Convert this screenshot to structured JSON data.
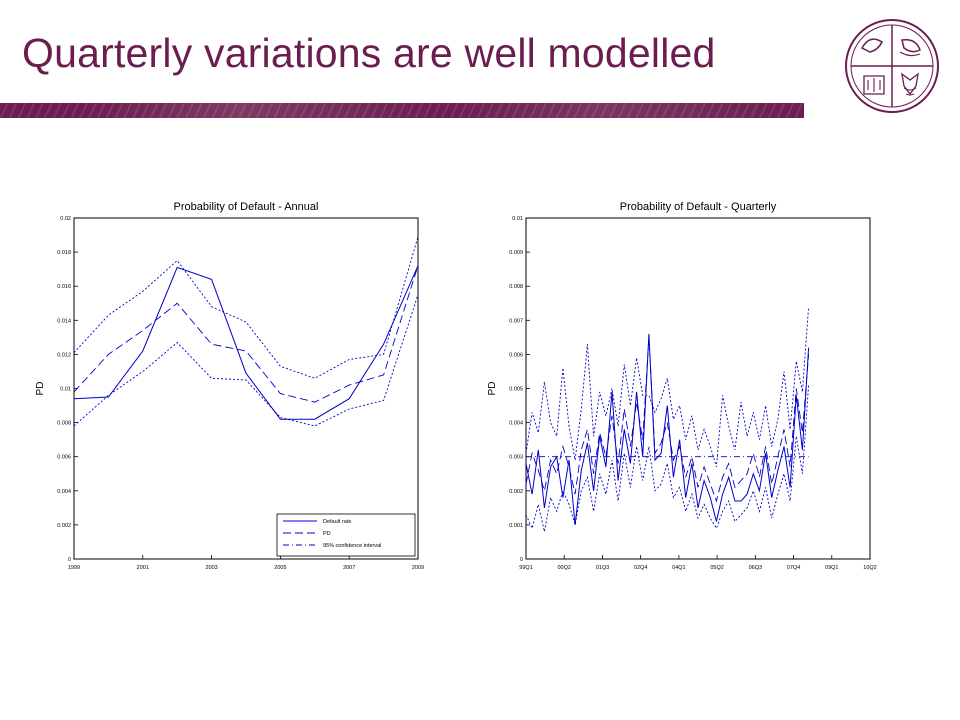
{
  "slide": {
    "title": "Quarterly variations are well modelled"
  },
  "colors": {
    "title": "#6b1d4f",
    "band": "#6b1d4f",
    "series": "#0000cc"
  },
  "icons": {
    "seal": "university-seal-icon"
  },
  "chart_data": [
    {
      "type": "line",
      "title": "Probability of Default - Annual",
      "xlabel": "",
      "ylabel": "PD",
      "xlim": [
        1999,
        2009
      ],
      "ylim": [
        0,
        0.02
      ],
      "xticks": [
        "1999",
        "2001",
        "2003",
        "2005",
        "2007",
        "2009"
      ],
      "yticks": [
        "0",
        "0.002",
        "0.004",
        "0.006",
        "0.008",
        "0.01",
        "0.012",
        "0.014",
        "0.016",
        "0.018",
        "0.02"
      ],
      "legend_position": "bottom-right",
      "x": [
        1999,
        2000,
        2001,
        2002,
        2003,
        2004,
        2005,
        2006,
        2007,
        2008,
        2009
      ],
      "series": [
        {
          "name": "Default rate",
          "style": "solid",
          "values": [
            0.0094,
            0.0095,
            0.0122,
            0.0171,
            0.0164,
            0.0109,
            0.0082,
            0.0082,
            0.0094,
            0.0126,
            0.0172
          ]
        },
        {
          "name": "PD",
          "style": "dash",
          "values": [
            0.0098,
            0.012,
            0.0134,
            0.015,
            0.0126,
            0.0122,
            0.0097,
            0.0092,
            0.0102,
            0.0108,
            0.0172
          ]
        },
        {
          "name": "95% confidence interval",
          "style": "dot",
          "values": [
            0.0121,
            0.0143,
            0.0157,
            0.0175,
            0.0148,
            0.0139,
            0.0113,
            0.0106,
            0.0117,
            0.012,
            0.0189
          ]
        },
        {
          "name": "",
          "style": "dot",
          "values": [
            0.0078,
            0.0096,
            0.011,
            0.0127,
            0.0106,
            0.0105,
            0.0083,
            0.0078,
            0.0088,
            0.0093,
            0.0155
          ]
        }
      ]
    },
    {
      "type": "line",
      "title": "Probability of Default - Quarterly",
      "xlabel": "",
      "ylabel": "PD",
      "xlim": [
        0,
        56
      ],
      "ylim": [
        0,
        0.01
      ],
      "xticks": [
        "99Q1",
        "00Q2",
        "01Q3",
        "02Q4",
        "04Q1",
        "05Q2",
        "06Q3",
        "07Q4",
        "09Q1",
        "10Q2"
      ],
      "yticks": [
        "0",
        "0.001",
        "0.002",
        "0.003",
        "0.004",
        "0.005",
        "0.006",
        "0.007",
        "0.008",
        "0.009",
        "0.01"
      ],
      "reference_line": 0.003,
      "x": [
        0,
        1,
        2,
        3,
        4,
        5,
        6,
        7,
        8,
        9,
        10,
        11,
        12,
        13,
        14,
        15,
        16,
        17,
        18,
        19,
        20,
        21,
        22,
        23,
        24,
        25,
        26,
        27,
        28,
        29,
        30,
        31,
        32,
        33,
        34,
        35,
        36,
        37,
        38,
        39,
        40,
        41,
        42,
        43,
        44,
        45,
        46
      ],
      "series": [
        {
          "name": "Default rate",
          "style": "solid",
          "values": [
            0.0028,
            0.0019,
            0.0032,
            0.0015,
            0.0027,
            0.003,
            0.0018,
            0.0029,
            0.001,
            0.0026,
            0.0034,
            0.002,
            0.0036,
            0.0027,
            0.0049,
            0.0023,
            0.0038,
            0.0028,
            0.0049,
            0.003,
            0.0066,
            0.0029,
            0.0031,
            0.0045,
            0.0024,
            0.0035,
            0.0018,
            0.0028,
            0.0015,
            0.0023,
            0.0018,
            0.0011,
            0.0019,
            0.0024,
            0.0017,
            0.0017,
            0.0019,
            0.0025,
            0.002,
            0.0031,
            0.0018,
            0.0026,
            0.0033,
            0.0021,
            0.0048,
            0.0032,
            0.0062
          ]
        },
        {
          "name": "PD",
          "style": "dash",
          "values": [
            0.0022,
            0.0031,
            0.0026,
            0.002,
            0.0029,
            0.0025,
            0.0033,
            0.0027,
            0.0019,
            0.0032,
            0.0038,
            0.0025,
            0.0037,
            0.003,
            0.0042,
            0.0028,
            0.0044,
            0.0033,
            0.0046,
            0.0035,
            0.0065,
            0.0031,
            0.0034,
            0.004,
            0.0029,
            0.0033,
            0.0024,
            0.003,
            0.0021,
            0.0027,
            0.0022,
            0.0017,
            0.0024,
            0.0028,
            0.0021,
            0.0023,
            0.0025,
            0.0031,
            0.0024,
            0.0033,
            0.0022,
            0.003,
            0.0038,
            0.0027,
            0.005,
            0.0037,
            0.006
          ]
        },
        {
          "name": "95% confidence interval",
          "style": "dot",
          "values": [
            0.0031,
            0.0043,
            0.0037,
            0.0052,
            0.004,
            0.0036,
            0.0056,
            0.0039,
            0.0029,
            0.0044,
            0.0063,
            0.0036,
            0.0049,
            0.0042,
            0.005,
            0.0039,
            0.0057,
            0.0045,
            0.0059,
            0.0048,
            0.0048,
            0.0043,
            0.0047,
            0.0053,
            0.0041,
            0.0045,
            0.0035,
            0.0042,
            0.0032,
            0.0038,
            0.0033,
            0.0027,
            0.0048,
            0.0039,
            0.0032,
            0.0046,
            0.0036,
            0.0043,
            0.0035,
            0.0045,
            0.0033,
            0.0041,
            0.0055,
            0.0038,
            0.0058,
            0.0049,
            0.0074
          ]
        },
        {
          "name": "",
          "style": "dot",
          "values": [
            0.0013,
            0.0009,
            0.0016,
            0.0008,
            0.0018,
            0.0014,
            0.002,
            0.0016,
            0.001,
            0.002,
            0.0024,
            0.0014,
            0.0025,
            0.0019,
            0.0029,
            0.0017,
            0.0031,
            0.0021,
            0.0033,
            0.0023,
            0.0033,
            0.002,
            0.0022,
            0.0028,
            0.0018,
            0.0021,
            0.0014,
            0.0019,
            0.0012,
            0.0016,
            0.0012,
            0.0009,
            0.0014,
            0.0017,
            0.0011,
            0.0013,
            0.0015,
            0.002,
            0.0014,
            0.0021,
            0.0012,
            0.0019,
            0.0025,
            0.0017,
            0.0036,
            0.0025,
            0.0051
          ]
        }
      ]
    }
  ]
}
